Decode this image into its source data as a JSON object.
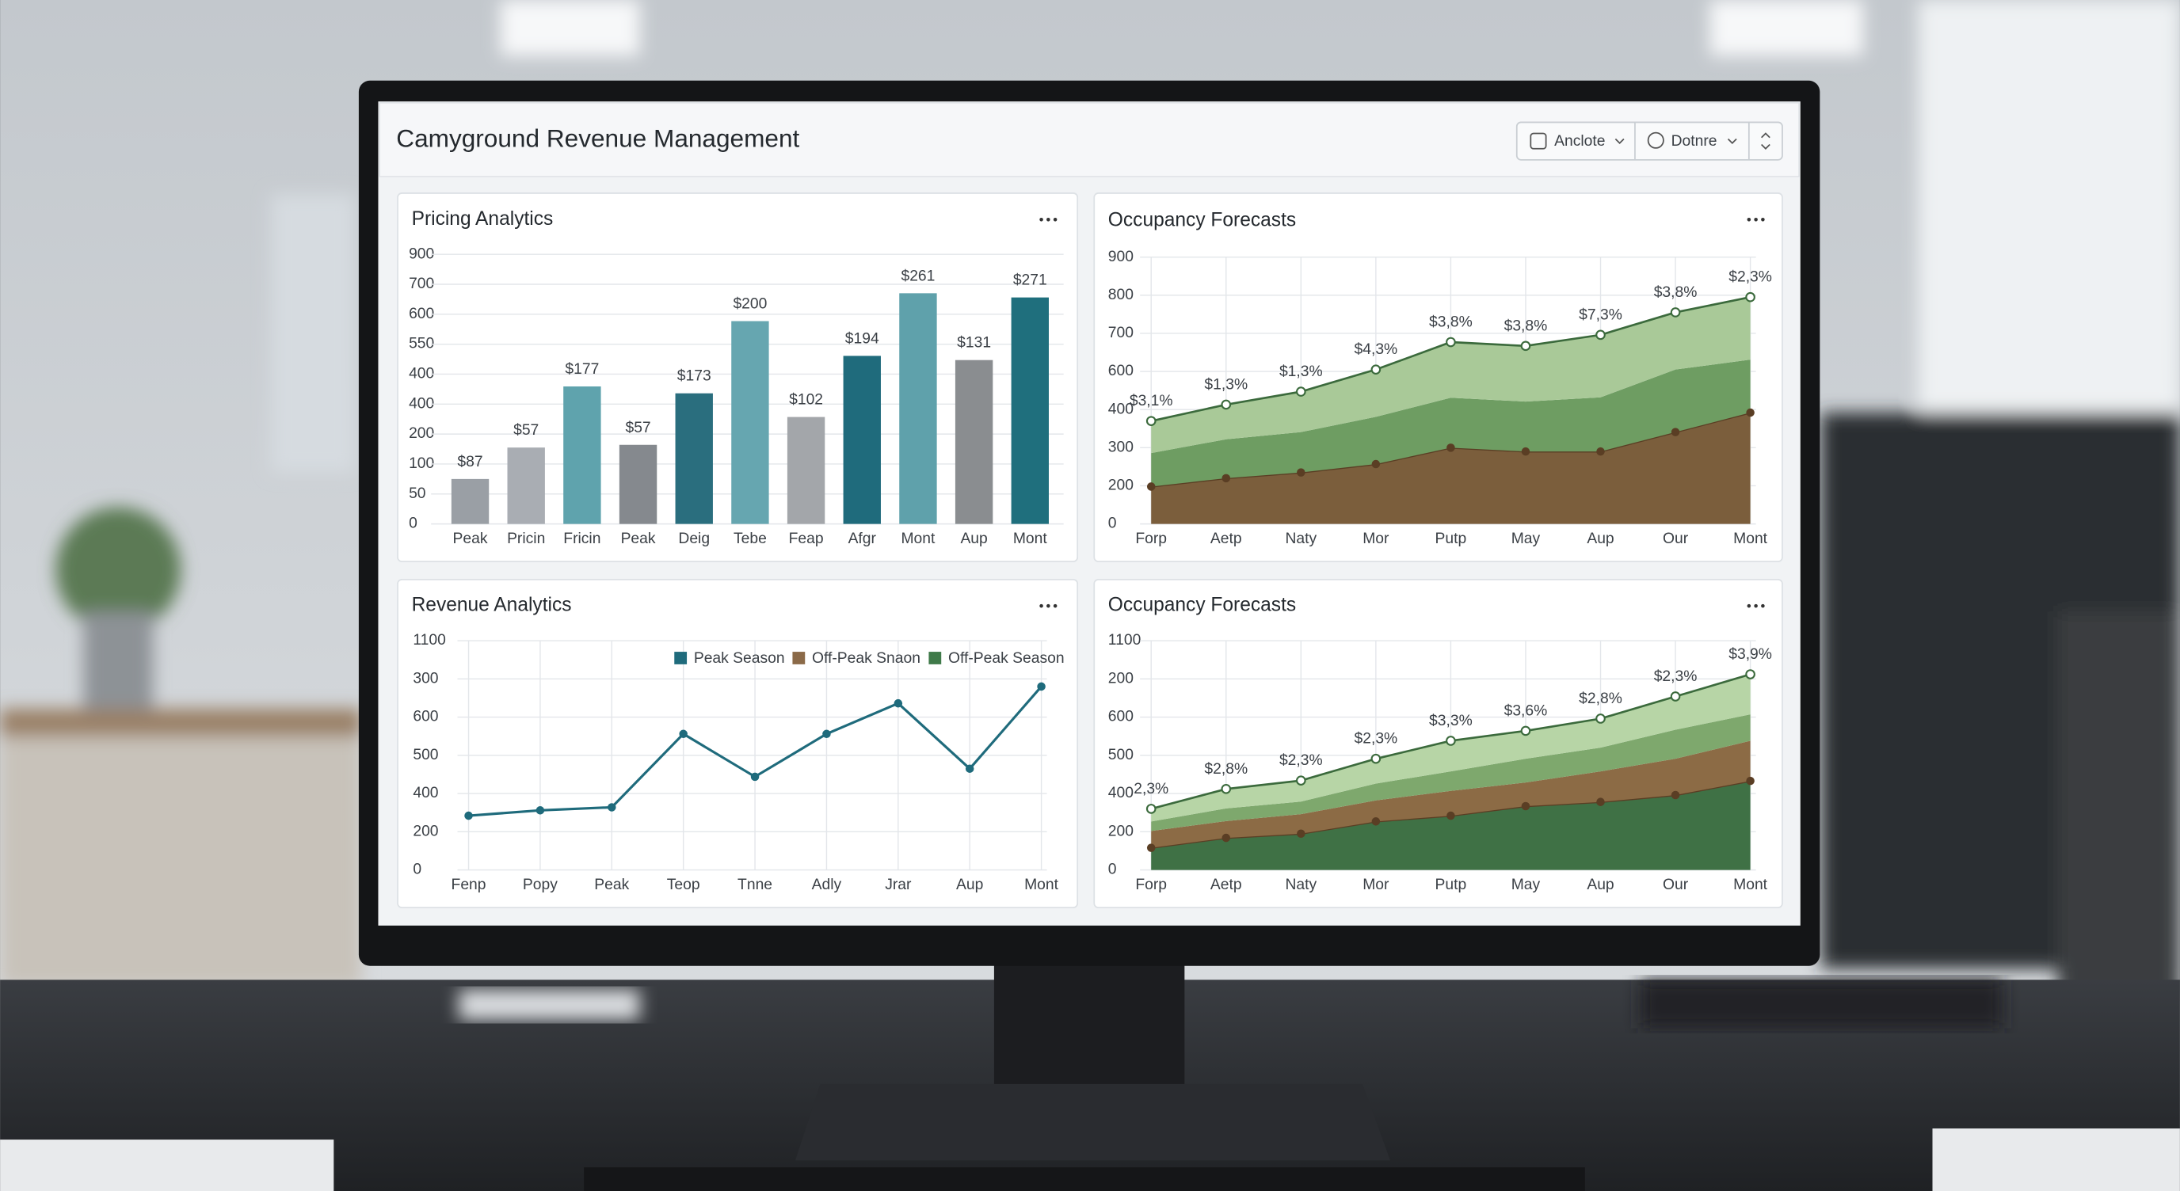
{
  "header": {
    "title": "Camyground Revenue Management",
    "buttons": [
      "Anclote",
      "Dotnre"
    ]
  },
  "chart_data": [
    {
      "type": "bar",
      "title": "Pricing Analytics",
      "categories": [
        "Peak",
        "Pricin",
        "Fricin",
        "Peak",
        "Deig",
        "Tebe",
        "Feap",
        "Afgr",
        "Mont",
        "Aup",
        "Mont"
      ],
      "values": [
        150,
        255,
        459,
        264,
        436,
        677,
        357,
        561,
        770,
        547,
        756
      ],
      "colors": [
        "#9a9fa5",
        "#a9adb3",
        "#5fa3ad",
        "#85898e",
        "#2a6e7e",
        "#66a6b0",
        "#a3a6aa",
        "#1f6b7c",
        "#5fa1ab",
        "#8a8d90",
        "#1f6f7d"
      ],
      "annotations": [
        "$87",
        "$57",
        "$177",
        "$57",
        "$173",
        "$200",
        "$102",
        "$194",
        "$261",
        "$131",
        "$271"
      ],
      "ylim": [
        0,
        900
      ],
      "yticks": [
        0,
        {
          "value": 100,
          "label": "50"
        },
        {
          "value": 200,
          "label": "100"
        },
        {
          "value": 300,
          "label": "200"
        },
        400,
        {
          "value": 500,
          "label": "400"
        },
        {
          "value": 600,
          "label": "550"
        },
        {
          "value": 700,
          "label": "600"
        },
        {
          "value": 800,
          "label": "700"
        },
        900
      ],
      "grid": true
    },
    {
      "type": "area",
      "title": "Occupancy Forecasts",
      "categories": [
        "Forp",
        "Aetp",
        "Naty",
        "Mor",
        "Putp",
        "May",
        "Aup",
        "Our",
        "Mont"
      ],
      "series": [
        {
          "color": "#7b5e3c",
          "marker": "filled",
          "values": [
            98,
            120,
            135,
            157,
            200,
            190,
            190,
            241,
            292
          ]
        },
        {
          "color": "#6e9d62",
          "values": [
            88,
            102,
            106,
            124,
            131,
            131,
            142,
            164,
            139
          ]
        },
        {
          "color": "#a9c998",
          "marker": "hollow",
          "values": [
            84,
            91,
            106,
            124,
            146,
            146,
            164,
            150,
            164
          ]
        }
      ],
      "annotations": [
        "$3,1%",
        "$1,3%",
        "$1,3%",
        "$4,3%",
        "$3,8%",
        "$3,8%",
        "$7,3%",
        "$3,8%",
        "$2,3%"
      ],
      "ylim": [
        0,
        700
      ],
      "yticks": [
        0,
        {
          "value": 100,
          "label": "200"
        },
        {
          "value": 200,
          "label": "300"
        },
        {
          "value": 300,
          "label": "400"
        },
        {
          "value": 400,
          "label": "600"
        },
        {
          "value": 500,
          "label": "700"
        },
        {
          "value": 600,
          "label": "800"
        },
        {
          "value": 700,
          "label": "900"
        }
      ],
      "grid": true,
      "xgrid": true
    },
    {
      "type": "line",
      "title": "Revenue Analytics",
      "categories": [
        "Fenp",
        "Popy",
        "Peak",
        "Teop",
        "Tnne",
        "Adly",
        "Jrar",
        "Aup",
        "Mont"
      ],
      "values": [
        142,
        156,
        164,
        356,
        244,
        356,
        436,
        265,
        480
      ],
      "color": "#1f6b7c",
      "legend_entries": [
        {
          "name": "Peak Season",
          "color": "#1f6b7c"
        },
        {
          "name": "Off-Peak Snaon",
          "color": "#8b6a48"
        },
        {
          "name": "Off-Peak Season",
          "color": "#3f7a49"
        }
      ],
      "ylim": [
        0,
        600
      ],
      "yticks": [
        0,
        {
          "value": 100,
          "label": "200"
        },
        {
          "value": 200,
          "label": "400"
        },
        {
          "value": 300,
          "label": "500"
        },
        {
          "value": 400,
          "label": "600"
        },
        {
          "value": 500,
          "label": "300"
        },
        {
          "value": 600,
          "label": "1100"
        }
      ],
      "grid": true,
      "xgrid": true
    },
    {
      "type": "area",
      "title": "Occupancy Forecasts",
      "categories": [
        "Forp",
        "Aetp",
        "Naty",
        "Mor",
        "Putp",
        "May",
        "Aup",
        "Our",
        "Mont"
      ],
      "series": [
        {
          "color": "#3f7145",
          "marker": "filled",
          "values": [
            58,
            84,
            95,
            127,
            142,
            167,
            178,
            196,
            233
          ]
        },
        {
          "color": "#8c6b45",
          "values": [
            44,
            44,
            51,
            55,
            65,
            62,
            80,
            95,
            105
          ]
        },
        {
          "color": "#7ea86d",
          "values": [
            25,
            33,
            33,
            44,
            51,
            62,
            62,
            76,
            69
          ]
        },
        {
          "color": "#b7d5a6",
          "marker": "hollow",
          "values": [
            33,
            51,
            55,
            65,
            80,
            73,
            76,
            87,
            105
          ]
        }
      ],
      "annotations": [
        "2,3%",
        "$2,8%",
        "$2,3%",
        "$2,3%",
        "$3,3%",
        "$3,6%",
        "$2,8%",
        "$2,3%",
        "$3,9%"
      ],
      "ylim": [
        0,
        600
      ],
      "yticks": [
        0,
        {
          "value": 100,
          "label": "200"
        },
        {
          "value": 200,
          "label": "400"
        },
        {
          "value": 300,
          "label": "500"
        },
        {
          "value": 400,
          "label": "600"
        },
        {
          "value": 500,
          "label": "200"
        },
        {
          "value": 600,
          "label": "1100"
        }
      ],
      "grid": true,
      "xgrid": true
    }
  ]
}
